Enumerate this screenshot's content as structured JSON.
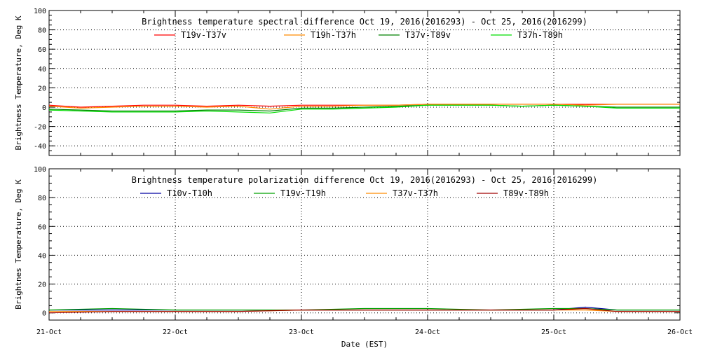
{
  "chart_data": [
    {
      "type": "line",
      "title": "Brightness temperature spectral difference     Oct 19, 2016(2016293) - Oct 25, 2016(2016299)",
      "xlabel": "",
      "ylabel": "Brightness Temperature, Deg K",
      "ylim": [
        -50,
        100
      ],
      "yticks": [
        -40,
        -20,
        0,
        20,
        40,
        60,
        80,
        100
      ],
      "xlim": [
        "2016-10-21",
        "2016-10-26"
      ],
      "xticks": [
        "21-Oct",
        "22-Oct",
        "23-Oct",
        "24-Oct",
        "25-Oct",
        "26-Oct"
      ],
      "grid": true,
      "legend": "top",
      "series": [
        {
          "name": "T19v-T37v",
          "color": "#ff0000",
          "x": [
            "2016-10-21 00:00",
            "2016-10-21 06:00",
            "2016-10-21 12:00",
            "2016-10-21 18:00",
            "2016-10-22 00:00",
            "2016-10-22 06:00",
            "2016-10-22 12:00",
            "2016-10-22 18:00",
            "2016-10-23 00:00",
            "2016-10-23 06:00",
            "2016-10-23 12:00",
            "2016-10-23 18:00",
            "2016-10-24 00:00",
            "2016-10-24 06:00",
            "2016-10-24 12:00",
            "2016-10-24 18:00",
            "2016-10-25 00:00",
            "2016-10-25 06:00",
            "2016-10-25 12:00",
            "2016-10-25 18:00",
            "2016-10-26 00:00"
          ],
          "values": [
            2,
            0,
            1,
            2,
            2,
            1,
            2,
            1,
            2,
            2,
            2,
            2,
            3,
            3,
            3,
            3,
            3,
            3,
            3,
            3,
            3
          ]
        },
        {
          "name": "T19h-T37h",
          "color": "#ff8c00",
          "x": [
            "2016-10-21 00:00",
            "2016-10-21 06:00",
            "2016-10-21 12:00",
            "2016-10-21 18:00",
            "2016-10-22 00:00",
            "2016-10-22 06:00",
            "2016-10-22 12:00",
            "2016-10-22 18:00",
            "2016-10-23 00:00",
            "2016-10-23 06:00",
            "2016-10-23 12:00",
            "2016-10-23 18:00",
            "2016-10-24 00:00",
            "2016-10-24 06:00",
            "2016-10-24 12:00",
            "2016-10-24 18:00",
            "2016-10-25 00:00",
            "2016-10-25 06:00",
            "2016-10-25 12:00",
            "2016-10-25 18:00",
            "2016-10-26 00:00"
          ],
          "values": [
            1,
            -1,
            0,
            1,
            1,
            0,
            1,
            -2,
            1,
            1,
            2,
            2,
            3,
            3,
            3,
            3,
            3,
            2,
            3,
            3,
            3
          ]
        },
        {
          "name": "T37v-T89v",
          "color": "#008000",
          "x": [
            "2016-10-21 00:00",
            "2016-10-21 06:00",
            "2016-10-21 12:00",
            "2016-10-21 18:00",
            "2016-10-22 00:00",
            "2016-10-22 06:00",
            "2016-10-22 12:00",
            "2016-10-22 18:00",
            "2016-10-23 00:00",
            "2016-10-23 06:00",
            "2016-10-23 12:00",
            "2016-10-23 18:00",
            "2016-10-24 00:00",
            "2016-10-24 06:00",
            "2016-10-24 12:00",
            "2016-10-24 18:00",
            "2016-10-25 00:00",
            "2016-10-25 06:00",
            "2016-10-25 12:00",
            "2016-10-25 18:00",
            "2016-10-26 00:00"
          ],
          "values": [
            -2,
            -3,
            -4,
            -4,
            -4,
            -3,
            -3,
            -4,
            -1,
            -1,
            0,
            1,
            2,
            2,
            2,
            1,
            2,
            1,
            0,
            0,
            0
          ]
        },
        {
          "name": "T37h-T89h",
          "color": "#00dd00",
          "x": [
            "2016-10-21 00:00",
            "2016-10-21 06:00",
            "2016-10-21 12:00",
            "2016-10-21 18:00",
            "2016-10-22 00:00",
            "2016-10-22 06:00",
            "2016-10-22 12:00",
            "2016-10-22 18:00",
            "2016-10-23 00:00",
            "2016-10-23 06:00",
            "2016-10-23 12:00",
            "2016-10-23 18:00",
            "2016-10-24 00:00",
            "2016-10-24 06:00",
            "2016-10-24 12:00",
            "2016-10-24 18:00",
            "2016-10-25 00:00",
            "2016-10-25 06:00",
            "2016-10-25 12:00",
            "2016-10-25 18:00",
            "2016-10-26 00:00"
          ],
          "values": [
            -3,
            -4,
            -5,
            -5,
            -5,
            -4,
            -5,
            -6,
            -2,
            -2,
            -1,
            0,
            2,
            2,
            2,
            1,
            2,
            1,
            -1,
            -1,
            -1
          ]
        }
      ]
    },
    {
      "type": "line",
      "title": "Brightness temperature polarization difference     Oct 19, 2016(2016293) - Oct 25, 2016(2016299)",
      "xlabel": "Date (EST)",
      "ylabel": "Brightnes Temperature, Deg K",
      "ylim": [
        -5,
        100
      ],
      "yticks": [
        0,
        20,
        40,
        60,
        80,
        100
      ],
      "xlim": [
        "2016-10-21",
        "2016-10-26"
      ],
      "xticks": [
        "21-Oct",
        "22-Oct",
        "23-Oct",
        "24-Oct",
        "25-Oct",
        "26-Oct"
      ],
      "grid": true,
      "legend": "top",
      "series": [
        {
          "name": "T10v-T10h",
          "color": "#0000a0",
          "x": [
            "2016-10-21 00:00",
            "2016-10-21 12:00",
            "2016-10-22 00:00",
            "2016-10-22 12:00",
            "2016-10-23 00:00",
            "2016-10-23 12:00",
            "2016-10-24 00:00",
            "2016-10-24 12:00",
            "2016-10-25 00:00",
            "2016-10-25 06:00",
            "2016-10-25 12:00",
            "2016-10-26 00:00"
          ],
          "values": [
            2,
            2,
            2,
            2,
            2,
            2,
            2,
            2,
            2,
            4,
            2,
            2
          ]
        },
        {
          "name": "T19v-T19h",
          "color": "#00a000",
          "x": [
            "2016-10-21 00:00",
            "2016-10-21 12:00",
            "2016-10-22 00:00",
            "2016-10-22 12:00",
            "2016-10-23 00:00",
            "2016-10-23 12:00",
            "2016-10-24 00:00",
            "2016-10-24 12:00",
            "2016-10-25 00:00",
            "2016-10-25 06:00",
            "2016-10-25 12:00",
            "2016-10-26 00:00"
          ],
          "values": [
            2,
            3,
            2,
            2,
            2,
            3,
            3,
            2,
            3,
            3,
            2,
            2
          ]
        },
        {
          "name": "T37v-T37h",
          "color": "#ff8c00",
          "x": [
            "2016-10-21 00:00",
            "2016-10-21 12:00",
            "2016-10-22 00:00",
            "2016-10-22 12:00",
            "2016-10-23 00:00",
            "2016-10-23 12:00",
            "2016-10-24 00:00",
            "2016-10-24 12:00",
            "2016-10-25 00:00",
            "2016-10-25 06:00",
            "2016-10-25 12:00",
            "2016-10-26 00:00"
          ],
          "values": [
            1,
            1,
            1,
            1,
            2,
            2,
            2,
            2,
            2,
            2,
            1,
            1
          ]
        },
        {
          "name": "T89v-T89h",
          "color": "#a00000",
          "x": [
            "2016-10-21 00:00",
            "2016-10-21 12:00",
            "2016-10-22 00:00",
            "2016-10-22 12:00",
            "2016-10-23 00:00",
            "2016-10-23 12:00",
            "2016-10-24 00:00",
            "2016-10-24 12:00",
            "2016-10-25 00:00",
            "2016-10-25 06:00",
            "2016-10-25 12:00",
            "2016-10-26 00:00"
          ],
          "values": [
            0,
            1,
            1,
            1,
            2,
            2,
            2,
            2,
            2,
            3,
            1,
            1
          ]
        }
      ]
    }
  ]
}
